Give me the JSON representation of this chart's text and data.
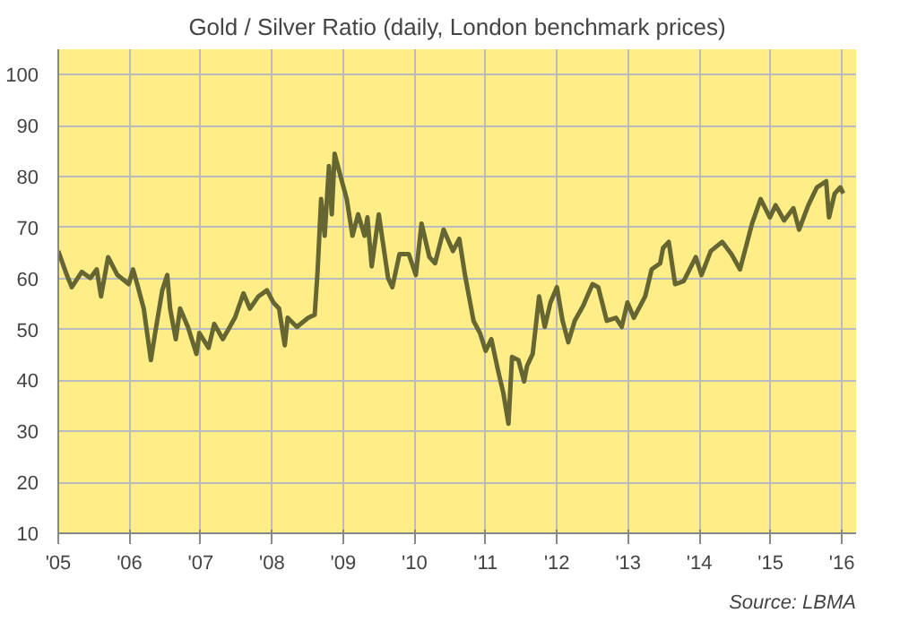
{
  "chart_data": {
    "type": "line",
    "title": "Gold / Silver Ratio (daily, London benchmark prices)",
    "x": [
      2005.0,
      2005.12,
      2005.19,
      2005.33,
      2005.45,
      2005.54,
      2005.6,
      2005.7,
      2005.83,
      2005.99,
      2006.05,
      2006.12,
      2006.2,
      2006.3,
      2006.36,
      2006.46,
      2006.53,
      2006.57,
      2006.65,
      2006.71,
      2006.82,
      2006.94,
      2006.98,
      2007.11,
      2007.19,
      2007.31,
      2007.48,
      2007.6,
      2007.69,
      2007.81,
      2007.93,
      2008.02,
      2008.1,
      2008.18,
      2008.22,
      2008.35,
      2008.51,
      2008.6,
      2008.64,
      2008.69,
      2008.74,
      2008.8,
      2008.84,
      2008.88,
      2008.97,
      2009.05,
      2009.13,
      2009.21,
      2009.3,
      2009.34,
      2009.4,
      2009.5,
      2009.63,
      2009.69,
      2009.79,
      2009.92,
      2010.02,
      2010.1,
      2010.21,
      2010.29,
      2010.41,
      2010.54,
      2010.63,
      2010.71,
      2010.83,
      2010.92,
      2011.0,
      2011.08,
      2011.17,
      2011.25,
      2011.32,
      2011.37,
      2011.46,
      2011.54,
      2011.58,
      2011.66,
      2011.75,
      2011.83,
      2011.91,
      2012.0,
      2012.08,
      2012.16,
      2012.25,
      2012.37,
      2012.5,
      2012.58,
      2012.7,
      2012.83,
      2012.91,
      2012.99,
      2013.08,
      2013.24,
      2013.33,
      2013.45,
      2013.49,
      2013.57,
      2013.66,
      2013.78,
      2013.95,
      2014.03,
      2014.16,
      2014.32,
      2014.45,
      2014.57,
      2014.65,
      2014.74,
      2014.86,
      2014.99,
      2015.07,
      2015.19,
      2015.32,
      2015.4,
      2015.53,
      2015.65,
      2015.78,
      2015.82,
      2015.9,
      2015.98,
      2016.02
    ],
    "series": [
      {
        "color": "#666633",
        "values": [
          65.4,
          60.7,
          58.3,
          61.3,
          60.1,
          61.8,
          56.5,
          64.2,
          60.7,
          58.9,
          61.8,
          58.3,
          54.1,
          44.0,
          49.3,
          57.7,
          60.7,
          54.1,
          48.1,
          54.1,
          50.5,
          45.2,
          49.3,
          46.4,
          51.1,
          48.1,
          52.3,
          57.1,
          54.1,
          56.5,
          57.7,
          55.3,
          54.1,
          46.9,
          52.3,
          50.5,
          52.3,
          52.9,
          61.3,
          75.6,
          68.4,
          82.1,
          72.6,
          84.5,
          79.7,
          75.6,
          68.4,
          72.6,
          68.4,
          72.0,
          62.4,
          72.6,
          60.1,
          58.3,
          64.8,
          64.8,
          60.7,
          70.8,
          64.2,
          63.0,
          69.6,
          65.4,
          67.8,
          60.7,
          51.7,
          49.3,
          45.8,
          48.1,
          42.2,
          37.4,
          31.5,
          44.6,
          44.0,
          39.8,
          42.8,
          45.2,
          56.5,
          50.5,
          55.3,
          58.3,
          51.7,
          47.5,
          51.7,
          54.7,
          58.9,
          58.3,
          51.7,
          52.3,
          50.5,
          55.3,
          52.3,
          56.5,
          61.8,
          63.0,
          66.0,
          67.2,
          58.9,
          59.5,
          64.2,
          60.7,
          65.4,
          67.2,
          64.8,
          61.8,
          66.0,
          70.8,
          75.6,
          72.0,
          74.4,
          71.4,
          73.8,
          69.6,
          74.4,
          77.9,
          79.1,
          72.0,
          76.7,
          77.9,
          76.7
        ]
      }
    ],
    "xlim": [
      2005,
      2016.2
    ],
    "xticks": [
      {
        "value": 2005,
        "label": "'05"
      },
      {
        "value": 2006,
        "label": "'06"
      },
      {
        "value": 2007,
        "label": "'07"
      },
      {
        "value": 2008,
        "label": "'08"
      },
      {
        "value": 2009,
        "label": "'09"
      },
      {
        "value": 2010,
        "label": "'10"
      },
      {
        "value": 2011,
        "label": "'11"
      },
      {
        "value": 2012,
        "label": "'12"
      },
      {
        "value": 2013,
        "label": "'13"
      },
      {
        "value": 2014,
        "label": "'14"
      },
      {
        "value": 2015,
        "label": "'15"
      },
      {
        "value": 2016,
        "label": "'16"
      }
    ],
    "ylim": [
      10,
      105
    ],
    "yticks": [
      10,
      20,
      30,
      40,
      50,
      60,
      70,
      80,
      90,
      100
    ],
    "grid": true,
    "annotations": [
      "Source: LBMA"
    ]
  }
}
